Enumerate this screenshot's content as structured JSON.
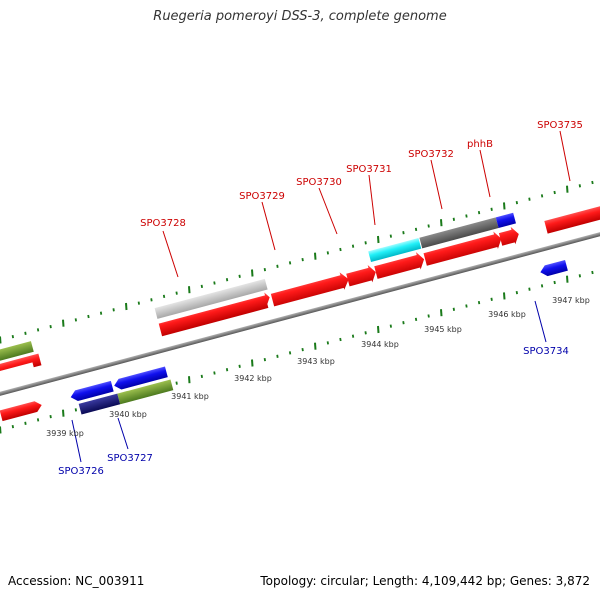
{
  "title": "Ruegeria pomeroyi DSS-3, complete genome",
  "footer": {
    "accession": "Accession: NC_003911",
    "summary": "Topology: circular; Length: 4,109,442 bp; Genes: 3,872"
  },
  "colors": {
    "forward_label": "#cc0000",
    "reverse_label": "#0000aa",
    "tick": "#1a7a1a",
    "backbone": "#888888"
  },
  "scale_labels": [
    "3939 kbp",
    "3940 kbp",
    "3941 kbp",
    "3942 kbp",
    "3943 kbp",
    "3944 kbp",
    "3945 kbp",
    "3946 kbp",
    "3947 kbp"
  ],
  "genes": [
    {
      "label": "SPO3728",
      "strand": "forward",
      "color": "red"
    },
    {
      "label": "SPO3729",
      "strand": "forward",
      "color": "red"
    },
    {
      "label": "SPO3730",
      "strand": "forward",
      "color": "red"
    },
    {
      "label": "SPO3731",
      "strand": "forward",
      "color": "red"
    },
    {
      "label": "SPO3732",
      "strand": "forward",
      "color": "red"
    },
    {
      "label": "phhB",
      "strand": "forward",
      "color": "red"
    },
    {
      "label": "SPO3735",
      "strand": "forward",
      "color": "red"
    },
    {
      "label": "SPO3734",
      "strand": "reverse",
      "color": "blue"
    },
    {
      "label": "SPO3726",
      "strand": "reverse",
      "color": "blue"
    },
    {
      "label": "SPO3727",
      "strand": "reverse",
      "color": "blue"
    }
  ]
}
